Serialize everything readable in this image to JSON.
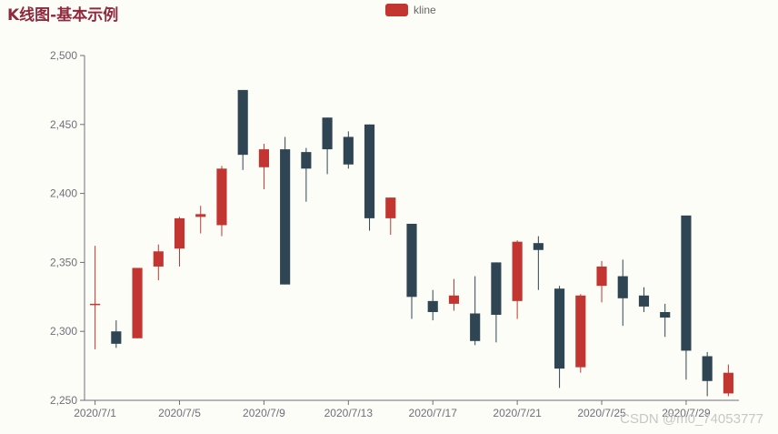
{
  "title": "K线图-基本示例",
  "legend": {
    "label": "kline",
    "color": "#c23531"
  },
  "watermark": "CSDN @m0_74053777",
  "colors": {
    "up": "#c23531",
    "down": "#2f4554",
    "axis": "#6e7079"
  },
  "chart_data": {
    "type": "candlestick",
    "ylim": [
      2250,
      2500
    ],
    "yticks": [
      2250,
      2300,
      2350,
      2400,
      2450,
      2500
    ],
    "xtick_labels": [
      "2020/7/1",
      "2020/7/5",
      "2020/7/9",
      "2020/7/13",
      "2020/7/17",
      "2020/7/21",
      "2020/7/25",
      "2020/7/29"
    ],
    "xtick_every": 4,
    "series": [
      {
        "name": "kline",
        "data": [
          {
            "x": "2020/7/1",
            "open": 2320,
            "close": 2320,
            "low": 2287,
            "high": 2362
          },
          {
            "x": "2020/7/2",
            "open": 2300,
            "close": 2291,
            "low": 2288,
            "high": 2308
          },
          {
            "x": "2020/7/3",
            "open": 2295,
            "close": 2346,
            "low": 2295,
            "high": 2346
          },
          {
            "x": "2020/7/4",
            "open": 2347,
            "close": 2358,
            "low": 2337,
            "high": 2363
          },
          {
            "x": "2020/7/5",
            "open": 2360,
            "close": 2382,
            "low": 2347,
            "high": 2383
          },
          {
            "x": "2020/7/6",
            "open": 2383,
            "close": 2385,
            "low": 2371,
            "high": 2391
          },
          {
            "x": "2020/7/7",
            "open": 2377,
            "close": 2418,
            "low": 2369,
            "high": 2420
          },
          {
            "x": "2020/7/8",
            "open": 2475,
            "close": 2428,
            "low": 2417,
            "high": 2475
          },
          {
            "x": "2020/7/9",
            "open": 2419,
            "close": 2432,
            "low": 2403,
            "high": 2436
          },
          {
            "x": "2020/7/10",
            "open": 2432,
            "close": 2334,
            "low": 2334,
            "high": 2441
          },
          {
            "x": "2020/7/11",
            "open": 2430,
            "close": 2418,
            "low": 2394,
            "high": 2433
          },
          {
            "x": "2020/7/12",
            "open": 2455,
            "close": 2432,
            "low": 2414,
            "high": 2455
          },
          {
            "x": "2020/7/13",
            "open": 2441,
            "close": 2421,
            "low": 2418,
            "high": 2445
          },
          {
            "x": "2020/7/14",
            "open": 2450,
            "close": 2382,
            "low": 2373,
            "high": 2450
          },
          {
            "x": "2020/7/15",
            "open": 2382,
            "close": 2397,
            "low": 2370,
            "high": 2397
          },
          {
            "x": "2020/7/16",
            "open": 2378,
            "close": 2325,
            "low": 2309,
            "high": 2378
          },
          {
            "x": "2020/7/17",
            "open": 2322,
            "close": 2314,
            "low": 2308,
            "high": 2330
          },
          {
            "x": "2020/7/18",
            "open": 2320,
            "close": 2326,
            "low": 2315,
            "high": 2338
          },
          {
            "x": "2020/7/19",
            "open": 2313,
            "close": 2293,
            "low": 2290,
            "high": 2340
          },
          {
            "x": "2020/7/20",
            "open": 2350,
            "close": 2312,
            "low": 2292,
            "high": 2350
          },
          {
            "x": "2020/7/21",
            "open": 2322,
            "close": 2365,
            "low": 2309,
            "high": 2366
          },
          {
            "x": "2020/7/22",
            "open": 2364,
            "close": 2359,
            "low": 2330,
            "high": 2369
          },
          {
            "x": "2020/7/23",
            "open": 2331,
            "close": 2273,
            "low": 2259,
            "high": 2333
          },
          {
            "x": "2020/7/24",
            "open": 2274,
            "close": 2326,
            "low": 2270,
            "high": 2327
          },
          {
            "x": "2020/7/25",
            "open": 2333,
            "close": 2347,
            "low": 2321,
            "high": 2351
          },
          {
            "x": "2020/7/26",
            "open": 2340,
            "close": 2324,
            "low": 2304,
            "high": 2352
          },
          {
            "x": "2020/7/27",
            "open": 2326,
            "close": 2318,
            "low": 2314,
            "high": 2332
          },
          {
            "x": "2020/7/28",
            "open": 2314,
            "close": 2310,
            "low": 2296,
            "high": 2320
          },
          {
            "x": "2020/7/29",
            "open": 2384,
            "close": 2286,
            "low": 2265,
            "high": 2384
          },
          {
            "x": "2020/7/30",
            "open": 2282,
            "close": 2264,
            "low": 2253,
            "high": 2285
          },
          {
            "x": "2020/7/31",
            "open": 2255,
            "close": 2270,
            "low": 2253,
            "high": 2276
          }
        ]
      }
    ]
  }
}
